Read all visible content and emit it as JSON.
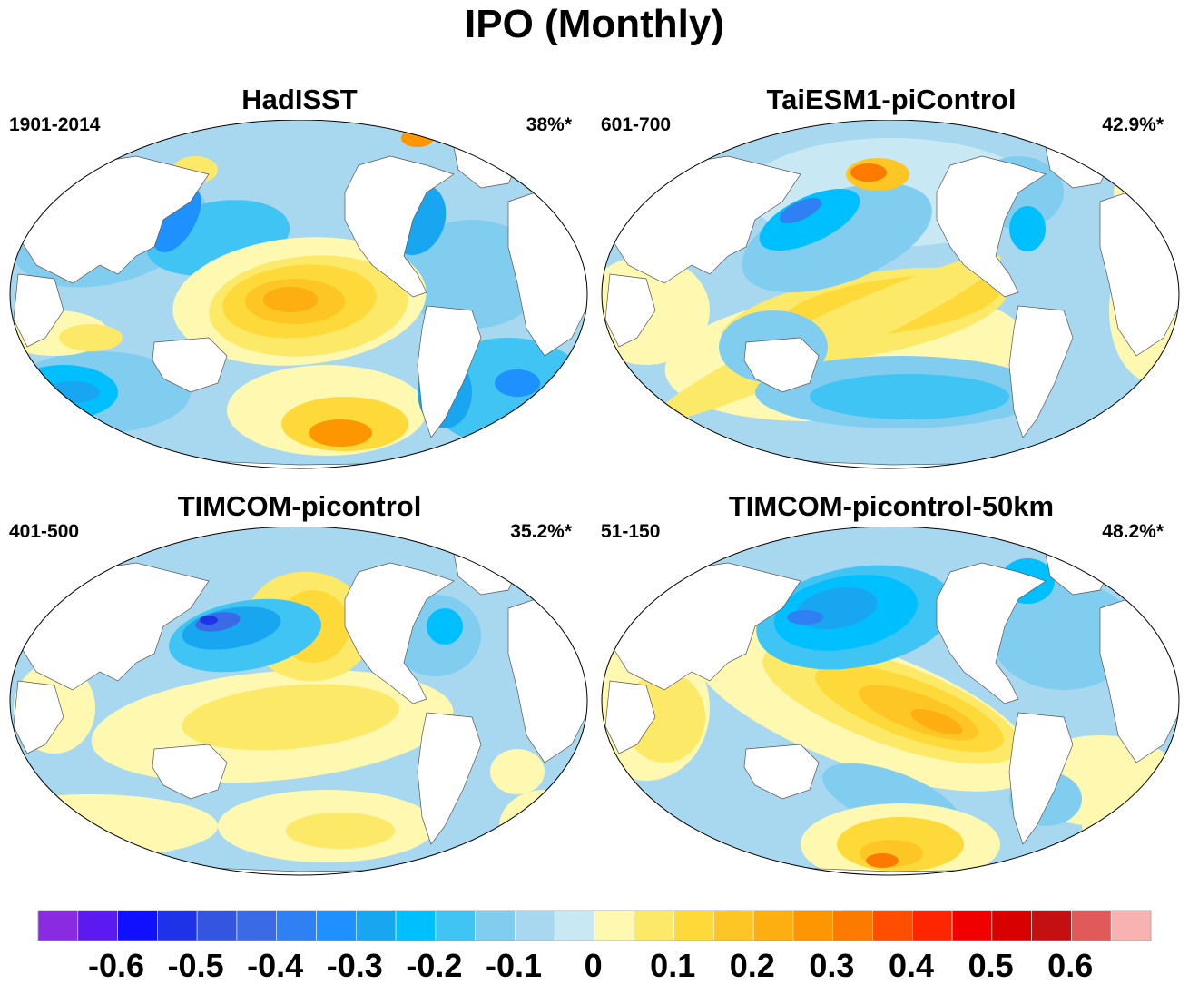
{
  "title": "IPO (Monthly)",
  "panels": [
    {
      "title": "HadISST",
      "period": "1901-2014",
      "variance": "38%*"
    },
    {
      "title": "TaiESM1-piControl",
      "period": "601-700",
      "variance": "42.9%*"
    },
    {
      "title": "TIMCOM-picontrol",
      "period": "401-500",
      "variance": "35.2%*"
    },
    {
      "title": "TIMCOM-picontrol-50km",
      "period": "51-150",
      "variance": "48.2%*"
    }
  ],
  "colorbar": {
    "colors": [
      "#8a2be2",
      "#5b1af0",
      "#1010ff",
      "#1e33e8",
      "#3355e0",
      "#3b6ae6",
      "#2f80f2",
      "#1e90ff",
      "#19a6f0",
      "#00bfff",
      "#40c4f4",
      "#80cdf0",
      "#a8d8f0",
      "#c8e8f4",
      "#fff8b0",
      "#fde968",
      "#fed93a",
      "#fdc624",
      "#fdae10",
      "#fd9600",
      "#fd7a00",
      "#fe4e00",
      "#fe2600",
      "#f20000",
      "#d80000",
      "#c41010",
      "#e05a5a",
      "#f9b2b2"
    ],
    "tick_labels": [
      "-0.6",
      "-0.5",
      "-0.4",
      "-0.3",
      "-0.2",
      "-0.1",
      "0",
      "0.1",
      "0.2",
      "0.3",
      "0.4",
      "0.5",
      "0.6"
    ]
  }
}
